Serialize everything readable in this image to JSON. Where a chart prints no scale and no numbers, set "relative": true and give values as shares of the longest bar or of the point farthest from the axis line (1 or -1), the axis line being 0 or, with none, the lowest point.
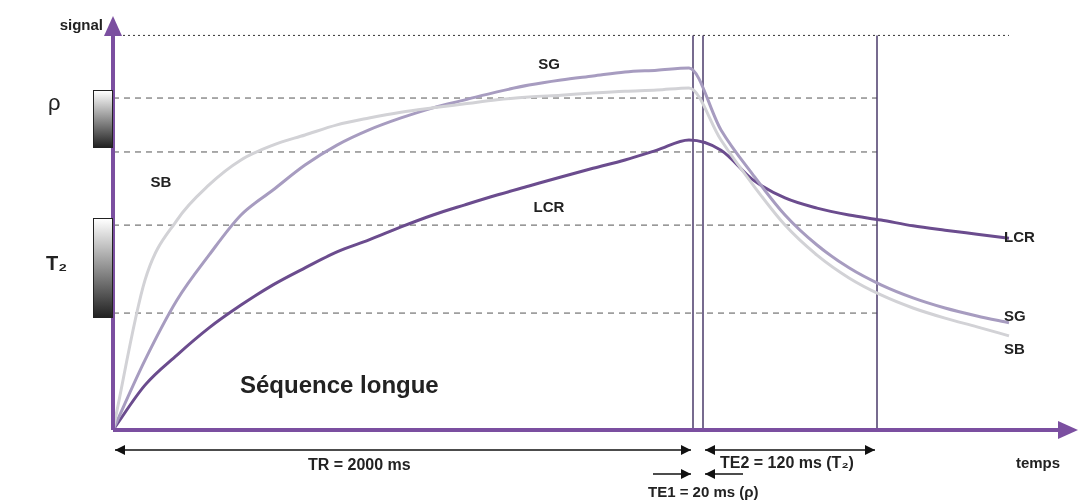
{
  "chart_data": {
    "type": "line",
    "relative": true,
    "xlabel": "temps",
    "ylabel": "signal",
    "legend": false,
    "marker": "none",
    "categories": [
      null,
      null,
      null,
      null,
      null,
      null,
      null,
      null,
      null,
      null,
      null,
      null,
      null,
      null,
      null,
      null,
      null,
      null,
      null,
      null,
      null,
      null,
      null,
      null,
      null,
      null,
      null,
      null,
      null,
      null,
      null
    ],
    "series": [
      {
        "name": "SB",
        "color": "#d2d2d6",
        "values": [
          0,
          0.414,
          0.58,
          0.677,
          0.746,
          0.787,
          0.815,
          0.843,
          0.862,
          0.878,
          0.89,
          0.901,
          0.912,
          0.92,
          0.925,
          0.931,
          0.936,
          0.939,
          0.945,
          0.801,
          0.677,
          0.566,
          0.483,
          0.42,
          0.373,
          0.337,
          0.309,
          0.285,
          0.26,
          null,
          null
        ]
      },
      {
        "name": "SG",
        "color": "#a79cc0",
        "values": [
          0,
          0.193,
          0.359,
          0.483,
          0.594,
          0.663,
          0.732,
          0.787,
          0.829,
          0.862,
          0.89,
          0.912,
          0.934,
          0.953,
          0.967,
          0.978,
          0.989,
          0.994,
          1,
          0.829,
          0.705,
          0.594,
          0.511,
          0.448,
          0.401,
          0.365,
          0.337,
          0.315,
          0.296,
          null,
          null
        ]
      },
      {
        "name": "LCR",
        "color": "#6b4c8e",
        "values": [
          0,
          0.124,
          0.207,
          0.282,
          0.345,
          0.401,
          0.448,
          0.492,
          0.525,
          0.561,
          0.594,
          0.622,
          0.649,
          0.674,
          0.699,
          0.723,
          0.746,
          0.773,
          0.801,
          0.773,
          0.691,
          0.641,
          0.613,
          0.594,
          0.58,
          0.564,
          0.552,
          0.541,
          0.53,
          null,
          null
        ]
      }
    ],
    "ref_lines": [
      {
        "axis": "y",
        "value": 1.09,
        "line_style": "dotted",
        "color": "#333333"
      },
      {
        "axis": "y",
        "value": 0.917,
        "line_style": "dashed",
        "color": "#555555"
      },
      {
        "axis": "y",
        "value": 0.768,
        "line_style": "dashed",
        "color": "#555555"
      },
      {
        "axis": "y",
        "value": 0.566,
        "line_style": "dashed",
        "color": "#555555"
      },
      {
        "axis": "y",
        "value": 0.323,
        "line_style": "dashed",
        "color": "#555555"
      }
    ],
    "annotations": [
      "Séquence longue",
      "TR = 2000 ms",
      "TE2 = 120 ms (T₂)",
      "TE1 = 20 ms (ρ)",
      "ρ",
      "T₂"
    ]
  }
}
